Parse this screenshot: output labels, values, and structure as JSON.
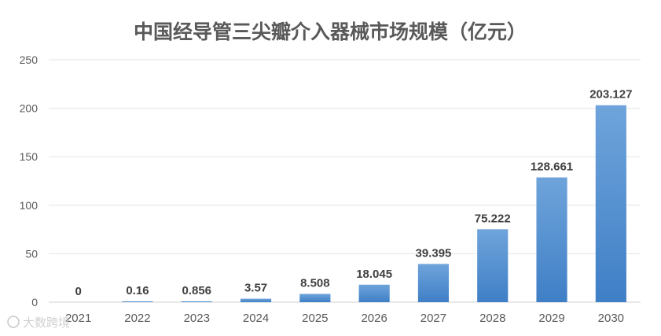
{
  "chart_data": {
    "type": "bar",
    "title": "中国经导管三尖瓣介入器械市场规模（亿元）",
    "categories": [
      "2021",
      "2022",
      "2023",
      "2024",
      "2025",
      "2026",
      "2027",
      "2028",
      "2029",
      "2030"
    ],
    "values": [
      0,
      0.16,
      0.856,
      3.57,
      8.508,
      18.045,
      39.395,
      75.222,
      128.661,
      203.127
    ],
    "data_labels": [
      "0",
      "0.16",
      "0.856",
      "3.57",
      "8.508",
      "18.045",
      "39.395",
      "75.222",
      "128.661",
      "203.127"
    ],
    "yticks": [
      "0",
      "50",
      "100",
      "150",
      "200",
      "250"
    ],
    "ylim": [
      0,
      250
    ],
    "grid": true,
    "legend": "none",
    "bar_color_top": "#6fa4db",
    "bar_color_bottom": "#3f7fc6"
  },
  "watermark": {
    "text": "大数跨境"
  }
}
